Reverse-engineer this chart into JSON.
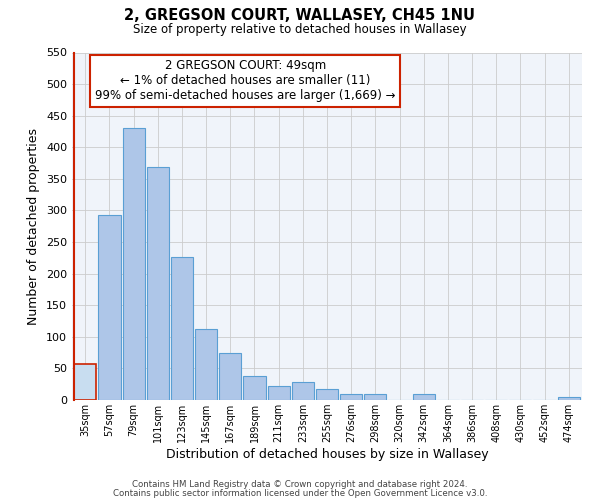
{
  "title": "2, GREGSON COURT, WALLASEY, CH45 1NU",
  "subtitle": "Size of property relative to detached houses in Wallasey",
  "xlabel": "Distribution of detached houses by size in Wallasey",
  "ylabel": "Number of detached properties",
  "bar_labels": [
    "35sqm",
    "57sqm",
    "79sqm",
    "101sqm",
    "123sqm",
    "145sqm",
    "167sqm",
    "189sqm",
    "211sqm",
    "233sqm",
    "255sqm",
    "276sqm",
    "298sqm",
    "320sqm",
    "342sqm",
    "364sqm",
    "386sqm",
    "408sqm",
    "430sqm",
    "452sqm",
    "474sqm"
  ],
  "bar_values": [
    57,
    293,
    430,
    368,
    226,
    113,
    75,
    38,
    22,
    29,
    18,
    10,
    10,
    0,
    10,
    0,
    0,
    0,
    0,
    0,
    5
  ],
  "bar_color": "#aec6e8",
  "highlight_color": "#c8ddf0",
  "highlight_edge_color": "#cc2200",
  "normal_edge_color": "#5a9fd4",
  "highlight_index": 0,
  "annotation_title": "2 GREGSON COURT: 49sqm",
  "annotation_line1": "← 1% of detached houses are smaller (11)",
  "annotation_line2": "99% of semi-detached houses are larger (1,669) →",
  "annotation_box_color": "#ffffff",
  "annotation_box_edge": "#cc2200",
  "ylim": [
    0,
    550
  ],
  "yticks": [
    0,
    50,
    100,
    150,
    200,
    250,
    300,
    350,
    400,
    450,
    500,
    550
  ],
  "footer_line1": "Contains HM Land Registry data © Crown copyright and database right 2024.",
  "footer_line2": "Contains public sector information licensed under the Open Government Licence v3.0.",
  "bg_color": "#f0f4fa"
}
